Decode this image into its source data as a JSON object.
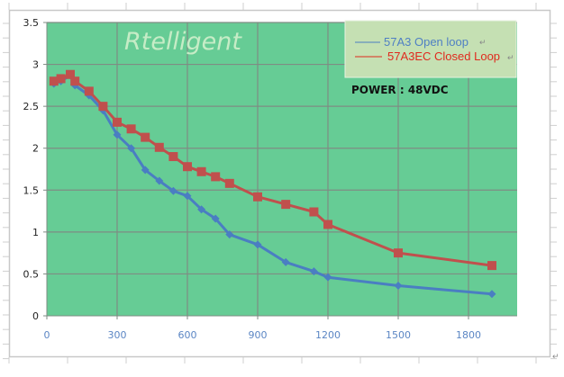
{
  "chart_data": {
    "type": "line",
    "title": "",
    "watermark": "Rtelligent",
    "annotation": "POWER : 48VDC",
    "xlabel": "",
    "ylabel": "",
    "xlim": [
      0,
      2000
    ],
    "ylim": [
      0,
      3.5
    ],
    "x_ticks": [
      0,
      300,
      600,
      900,
      1200,
      1500,
      1800
    ],
    "x_tick_labels": [
      "0",
      "300",
      "600",
      "900",
      "1200",
      "1500",
      "1800"
    ],
    "y_ticks": [
      0,
      0.5,
      1,
      1.5,
      2,
      2.5,
      3,
      3.5
    ],
    "y_tick_labels": [
      "0",
      "0.5",
      "1",
      "1.5",
      "2",
      "2.5",
      "3",
      "3.5"
    ],
    "grid": true,
    "legend_position": "top-right",
    "series": [
      {
        "name": "57A3 Open loop",
        "color": "#4a7ec2",
        "marker": "diamond",
        "x": [
          30,
          60,
          100,
          120,
          180,
          240,
          300,
          360,
          420,
          480,
          540,
          600,
          660,
          720,
          780,
          900,
          1020,
          1140,
          1200,
          1500,
          1900
        ],
        "values": [
          2.77,
          2.8,
          2.87,
          2.75,
          2.63,
          2.45,
          2.16,
          2.0,
          1.74,
          1.61,
          1.49,
          1.43,
          1.27,
          1.16,
          0.97,
          0.85,
          0.64,
          0.53,
          0.46,
          0.36,
          0.26
        ]
      },
      {
        "name": "57A3EC Closed Loop",
        "color": "#c0504d",
        "marker": "square",
        "x": [
          30,
          60,
          100,
          120,
          180,
          240,
          300,
          360,
          420,
          480,
          540,
          600,
          660,
          720,
          780,
          900,
          1020,
          1140,
          1200,
          1500,
          1900
        ],
        "values": [
          2.8,
          2.83,
          2.88,
          2.8,
          2.68,
          2.5,
          2.31,
          2.23,
          2.13,
          2.01,
          1.9,
          1.78,
          1.72,
          1.66,
          1.58,
          1.42,
          1.33,
          1.24,
          1.09,
          0.75,
          0.6
        ]
      }
    ]
  },
  "legend": {
    "items": [
      {
        "label": "57A3 Open loop",
        "color": "#4a7ec2"
      },
      {
        "label": "57A3EC Closed Loop",
        "color": "#e02a1e"
      }
    ],
    "return_mark": "↵"
  },
  "colors": {
    "plot_bg": "#66cc95",
    "legend_bg": "#c5e0b3",
    "grid": "#7f8c84",
    "frame": "#c8c8c8"
  }
}
